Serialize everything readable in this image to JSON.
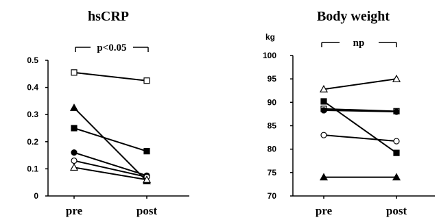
{
  "chart_data": [
    {
      "type": "line",
      "title": "hsCRP",
      "categories": [
        "pre",
        "post"
      ],
      "ylabel": "",
      "ylim": [
        0,
        0.5
      ],
      "yticks": [
        "0",
        "0.1",
        "0.2",
        "0.3",
        "0.4",
        "0.5"
      ],
      "ytick_values": [
        0,
        0.1,
        0.2,
        0.3,
        0.4,
        0.5
      ],
      "significance": "p<0.05",
      "series": [
        {
          "marker": "open-square",
          "values": [
            0.455,
            0.425
          ]
        },
        {
          "marker": "filled-triangle",
          "values": [
            0.325,
            0.055
          ]
        },
        {
          "marker": "filled-square",
          "values": [
            0.25,
            0.165
          ]
        },
        {
          "marker": "filled-circle",
          "values": [
            0.16,
            0.075
          ]
        },
        {
          "marker": "open-circle",
          "values": [
            0.13,
            0.07
          ]
        },
        {
          "marker": "open-triangle",
          "values": [
            0.105,
            0.06
          ]
        }
      ]
    },
    {
      "type": "line",
      "title": "Body weight",
      "categories": [
        "pre",
        "post"
      ],
      "ylabel": "kg",
      "ylim": [
        70,
        100
      ],
      "yticks": [
        "70",
        "75",
        "80",
        "85",
        "90",
        "95",
        "100"
      ],
      "ytick_values": [
        70,
        75,
        80,
        85,
        90,
        95,
        100
      ],
      "significance": "np",
      "series": [
        {
          "marker": "open-triangle",
          "values": [
            92.8,
            95.0
          ]
        },
        {
          "marker": "filled-square",
          "values": [
            90.2,
            79.2
          ]
        },
        {
          "marker": "open-square",
          "values": [
            88.6,
            88.1
          ]
        },
        {
          "marker": "filled-circle",
          "values": [
            88.3,
            88.0
          ]
        },
        {
          "marker": "open-circle",
          "values": [
            83.0,
            81.7
          ]
        },
        {
          "marker": "filled-triangle",
          "values": [
            74.0,
            74.0
          ]
        }
      ]
    }
  ]
}
